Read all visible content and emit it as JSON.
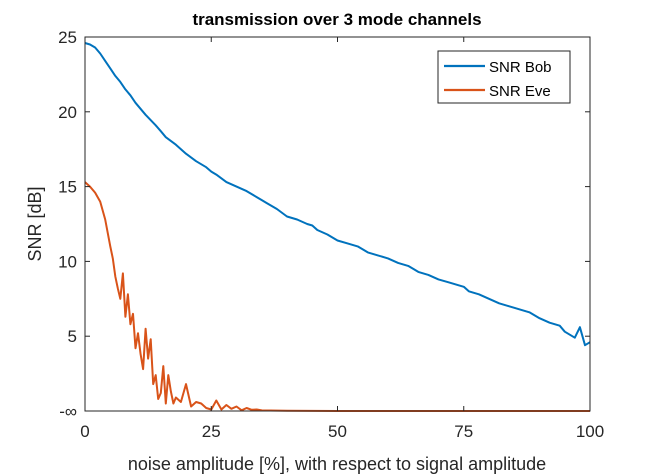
{
  "chart_data": {
    "type": "line",
    "title": "transmission over 3 mode channels",
    "xlabel": "noise amplitude [%], with respect to signal amplitude",
    "ylabel": "SNR [dB]",
    "xlim": [
      0,
      100
    ],
    "ylim": [
      0,
      25
    ],
    "x_ticks": [
      0,
      25,
      50,
      75,
      100
    ],
    "x_tick_labels": [
      "0",
      "25",
      "50",
      "75",
      "100"
    ],
    "y_ticks": [
      0,
      5,
      10,
      15,
      20,
      25
    ],
    "y_tick_labels": [
      "-∞",
      "5",
      "10",
      "15",
      "20",
      "25"
    ],
    "grid": false,
    "legend_position": "top-right",
    "series": [
      {
        "name": "SNR Bob",
        "color": "#0072bd",
        "x": [
          0,
          1,
          2,
          3,
          4,
          5,
          6,
          7,
          8,
          9,
          10,
          12,
          14,
          15,
          16,
          18,
          20,
          22,
          24,
          25,
          26,
          28,
          30,
          32,
          34,
          35,
          36,
          38,
          40,
          42,
          44,
          45,
          46,
          48,
          50,
          52,
          54,
          55,
          56,
          58,
          60,
          62,
          64,
          65,
          66,
          68,
          70,
          72,
          74,
          75,
          76,
          78,
          80,
          82,
          84,
          85,
          86,
          88,
          90,
          92,
          94,
          95,
          96,
          97,
          98,
          99,
          100
        ],
        "values": [
          24.6,
          24.5,
          24.3,
          23.9,
          23.4,
          22.9,
          22.4,
          22.0,
          21.5,
          21.1,
          20.6,
          19.8,
          19.1,
          18.7,
          18.3,
          17.8,
          17.2,
          16.7,
          16.3,
          16.0,
          15.8,
          15.3,
          15.0,
          14.7,
          14.3,
          14.1,
          13.9,
          13.5,
          13.0,
          12.8,
          12.5,
          12.4,
          12.1,
          11.8,
          11.4,
          11.2,
          11.0,
          10.8,
          10.6,
          10.4,
          10.2,
          9.9,
          9.7,
          9.5,
          9.3,
          9.1,
          8.8,
          8.6,
          8.4,
          8.3,
          8.0,
          7.8,
          7.5,
          7.2,
          7.0,
          6.9,
          6.8,
          6.6,
          6.2,
          5.9,
          5.7,
          5.3,
          5.1,
          4.9,
          5.6,
          4.4,
          4.6
        ]
      },
      {
        "name": "SNR Eve",
        "color": "#d95319",
        "x": [
          0,
          1,
          2,
          3,
          4,
          5,
          5.5,
          6,
          6.5,
          7,
          7.5,
          8,
          8.5,
          9,
          9.5,
          10,
          10.5,
          11,
          11.5,
          12,
          12.5,
          13,
          13.5,
          14,
          14.5,
          15,
          15.5,
          16,
          16.5,
          17,
          17.5,
          18,
          19,
          20,
          21,
          22,
          23,
          24,
          25,
          26,
          27,
          28,
          29,
          30,
          31,
          32,
          33,
          34,
          35,
          40,
          50,
          60,
          70,
          80,
          90,
          100
        ],
        "values": [
          15.3,
          15.0,
          14.6,
          14.0,
          12.8,
          11.0,
          10.2,
          9.0,
          8.2,
          7.5,
          9.2,
          6.3,
          7.8,
          5.8,
          6.5,
          4.2,
          5.2,
          3.8,
          2.8,
          5.5,
          3.5,
          4.8,
          1.8,
          2.4,
          0.8,
          1.2,
          3.0,
          0.5,
          2.4,
          1.3,
          0.5,
          0.9,
          0.6,
          1.8,
          0.3,
          0.6,
          0.5,
          0.2,
          0.1,
          0.7,
          0.1,
          0.4,
          0.15,
          0.3,
          0.05,
          0.2,
          0.08,
          0.1,
          0.04,
          0.02,
          0,
          0,
          0,
          0,
          0,
          0
        ]
      }
    ]
  }
}
